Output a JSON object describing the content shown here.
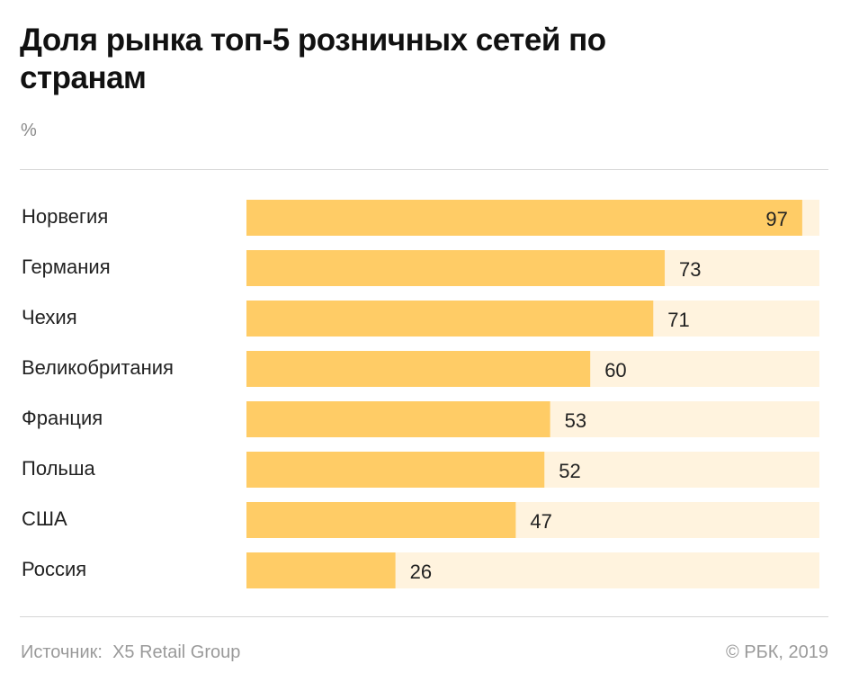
{
  "chart_data": {
    "type": "bar",
    "orientation": "horizontal",
    "title": "Доля рынка топ-5 розничных сетей по странам",
    "unit": "%",
    "categories": [
      "Норвегия",
      "Германия",
      "Чехия",
      "Великобритания",
      "Франция",
      "Польша",
      "США",
      "Россия"
    ],
    "values": [
      97,
      73,
      71,
      60,
      53,
      52,
      47,
      26
    ],
    "xlim": [
      0,
      100
    ],
    "grid": false,
    "bar_color": "#ffcc66",
    "track_color": "#fff3de"
  },
  "footer": {
    "source_label": "Источник:",
    "source_name": "X5 Retail Group",
    "copyright": "© РБК, 2019"
  }
}
